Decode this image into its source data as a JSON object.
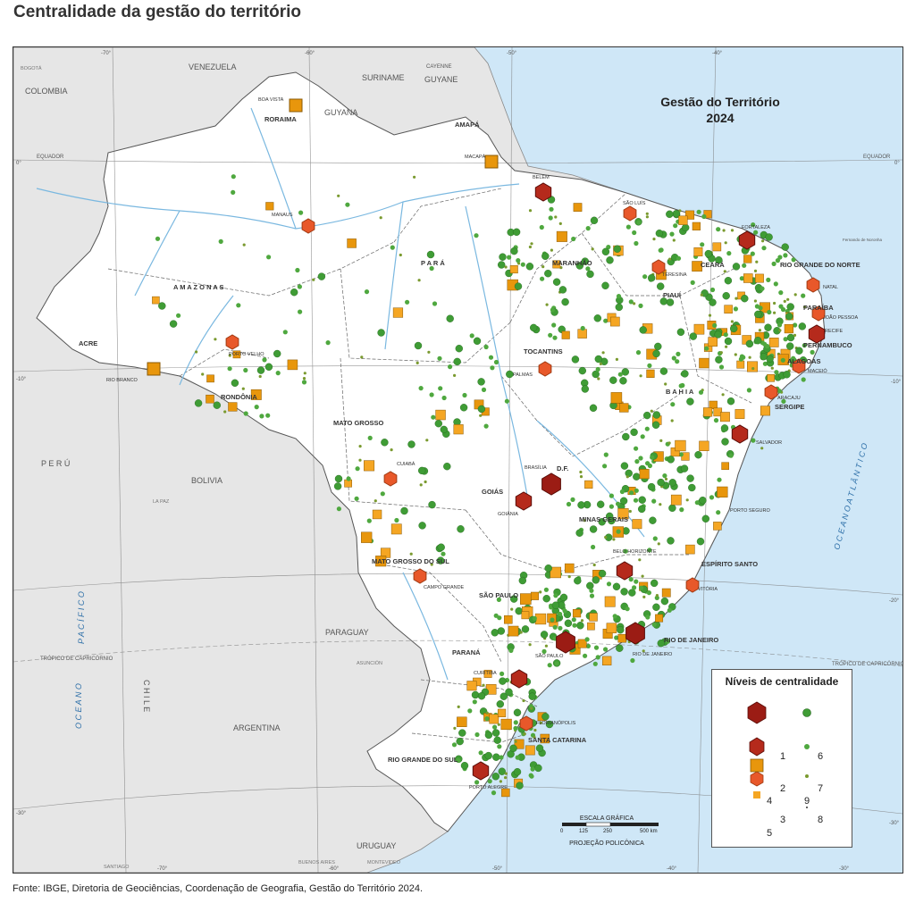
{
  "page_title": "Centralidade da gestão do território",
  "map_heading": [
    "Gestão do Território",
    "2024"
  ],
  "source_note": "Fonte: IBGE, Diretoria de Geociências, Coordenação de Geografia, Gestão do Território 2024.",
  "colors": {
    "ocean": "#cfe7f7",
    "neighbor_land": "#e6e6e6",
    "brazil_land": "#ffffff",
    "level_1": "#9b1c14",
    "level_2": "#b52a1c",
    "level_3": "#e8582a",
    "level_4": "#e8960c",
    "level_5": "#f5a623",
    "level_6_9": "#3f9c35"
  },
  "countries": {
    "venezuela": "VENEZUELA",
    "colombia": "COLOMBIA",
    "suriname": "SURINAME",
    "guyane": "GUYANE",
    "guyana": "GUYANA",
    "cayenne": "CAYENNE",
    "peru": "P E R Ú",
    "bolivia": "BOLIVIA",
    "chile": "C H I L E",
    "paraguay": "PARAGUAY",
    "argentina": "ARGENTINA",
    "uruguay": "URUGUAY"
  },
  "oceans": {
    "atlantico": "O C E A N O   A T L Â N T I C O",
    "pacifico_word1": "O C E A N O",
    "pacifico_word2": "P A C Í F I C O"
  },
  "states": {
    "roraima": "RORAIMA",
    "amapa": "AMAPÁ",
    "amazonas": "A M A Z O N A S",
    "para": "P A R Á",
    "maranhao": "MARANHÃO",
    "ceara": "CEARÁ",
    "rio_grande_do_norte": "RIO GRANDE DO NORTE",
    "paraiba": "PARAÍBA",
    "pernambuco": "PERNAMBUCO",
    "alagoas": "ALAGOAS",
    "sergipe": "SERGIPE",
    "piaui": "PIAUÍ",
    "bahia": "B A H I A",
    "tocantins": "TOCANTINS",
    "acre": "ACRE",
    "rondonia": "RONDÔNIA",
    "mato_grosso": "MATO GROSSO",
    "goias": "GOIÁS",
    "df": "D.F.",
    "minas_gerais": "MINAS GERAIS",
    "espirito_santo": "ESPÍRITO SANTO",
    "mato_grosso_do_sul": "MATO GROSSO DO SUL",
    "sao_paulo": "SÃO PAULO",
    "rio_de_janeiro_state": "RIO DE JANEIRO",
    "parana": "PARANÁ",
    "santa_catarina": "SANTA CATARINA",
    "rio_grande_do_sul": "RIO GRANDE DO SUL"
  },
  "cities": {
    "boa_vista": "BOA VISTA",
    "macapa": "MACAPÁ",
    "belem": "BELÉM",
    "manaus": "MANAUS",
    "sao_luis": "SÃO LUÍS",
    "fortaleza": "FORTALEZA",
    "teresina": "TERESINA",
    "natal": "NATAL",
    "joao_pessoa": "JOÃO PESSOA",
    "recife": "RECIFE",
    "maceio": "MACEIÓ",
    "aracaju": "ARACAJU",
    "salvador": "SALVADOR",
    "palmas": "PALMAS",
    "porto_velho": "PORTO VELHO",
    "rio_branco": "RIO BRANCO",
    "cuiaba": "CUIABÁ",
    "brasilia": "BRASÍLIA",
    "goiania": "GOIÂNIA",
    "belo_horizonte": "BELO HORIZONTE",
    "vitoria": "VITÓRIA",
    "campo_grande": "CAMPO GRANDE",
    "sao_paulo_city": "SÃO PAULO",
    "rio_de_janeiro_city": "RIO DE JANEIRO",
    "curitiba": "CURITIBA",
    "florianopolis": "FLORIANÓPOLIS",
    "porto_alegre": "PORTO ALEGRE",
    "porto_seguro": "PORTO SEGURO",
    "bogota": "BOGOTÁ",
    "la_paz": "LA PAZ",
    "asuncion": "ASUNCIÓN",
    "santiago": "SANTIAGO",
    "buenos_aires": "BUENOS AIRES",
    "montevideo": "MONTEVIDEO",
    "fernando_de_noronha": "Fernando de Noronha"
  },
  "graticule": {
    "equador": "EQUADOR",
    "tropico": "TRÓPICO DE CAPRICÓRNIO",
    "lon_labels": [
      "-70°",
      "-60°",
      "-50°",
      "-40°",
      "-30°"
    ],
    "lat_labels": [
      "0°",
      "-10°",
      "-20°",
      "-30°"
    ]
  },
  "legend": {
    "title": "Níveis de centralidade",
    "levels": [
      "1",
      "2",
      "3",
      "4",
      "5",
      "6",
      "7",
      "8",
      "9"
    ]
  },
  "scale": {
    "title": "ESCALA GRÁFICA",
    "ticks": [
      "0",
      "125",
      "250",
      "500 km"
    ],
    "projection": "PROJEÇÃO POLICÔNICA"
  },
  "major_centers": [
    {
      "name": "São Paulo",
      "level": 1
    },
    {
      "name": "Rio de Janeiro",
      "level": 1
    },
    {
      "name": "Brasília",
      "level": 1
    },
    {
      "name": "Belo Horizonte",
      "level": 2
    },
    {
      "name": "Fortaleza",
      "level": 2
    },
    {
      "name": "Recife",
      "level": 2
    },
    {
      "name": "Salvador",
      "level": 2
    },
    {
      "name": "Belém",
      "level": 2
    },
    {
      "name": "Goiânia",
      "level": 2
    },
    {
      "name": "Curitiba",
      "level": 2
    },
    {
      "name": "Porto Alegre",
      "level": 2
    },
    {
      "name": "Manaus",
      "level": 3
    },
    {
      "name": "São Luís",
      "level": 3
    },
    {
      "name": "Teresina",
      "level": 3
    },
    {
      "name": "Natal",
      "level": 3
    },
    {
      "name": "João Pessoa",
      "level": 3
    },
    {
      "name": "Maceió",
      "level": 3
    },
    {
      "name": "Aracaju",
      "level": 3
    },
    {
      "name": "Palmas",
      "level": 3
    },
    {
      "name": "Porto Velho",
      "level": 3
    },
    {
      "name": "Cuiabá",
      "level": 3
    },
    {
      "name": "Campo Grande",
      "level": 3
    },
    {
      "name": "Vitória",
      "level": 3
    },
    {
      "name": "Florianópolis",
      "level": 3
    },
    {
      "name": "Macapá",
      "level": 4
    },
    {
      "name": "Boa Vista",
      "level": 4
    },
    {
      "name": "Rio Branco",
      "level": 4
    }
  ]
}
